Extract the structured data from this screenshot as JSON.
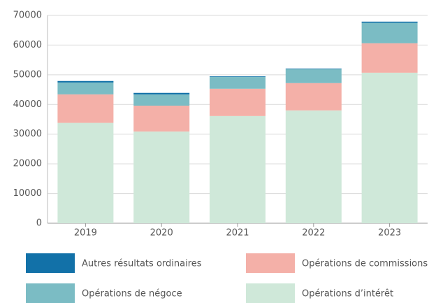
{
  "chart_data": {
    "type": "stacked_bar",
    "categories": [
      "2019",
      "2020",
      "2021",
      "2022",
      "2023"
    ],
    "series": [
      {
        "name": "Opérations d’intérêt",
        "color": "#cfe8d9",
        "values": [
          33800,
          30900,
          36100,
          38000,
          50700
        ]
      },
      {
        "name": "Opérations de commissions",
        "color": "#f4b0a8",
        "values": [
          9600,
          8700,
          9200,
          9200,
          9900
        ]
      },
      {
        "name": "Opérations de négoce",
        "color": "#7bbcc4",
        "values": [
          4000,
          3800,
          4000,
          4700,
          6900
        ]
      },
      {
        "name": "Autres résultats ordinaires",
        "color": "#1271a8",
        "values": [
          500,
          500,
          200,
          200,
          400
        ]
      }
    ],
    "ylim": [
      0,
      70000
    ],
    "yticks": [
      0,
      10000,
      20000,
      30000,
      40000,
      50000,
      60000,
      70000
    ],
    "grid": true
  }
}
